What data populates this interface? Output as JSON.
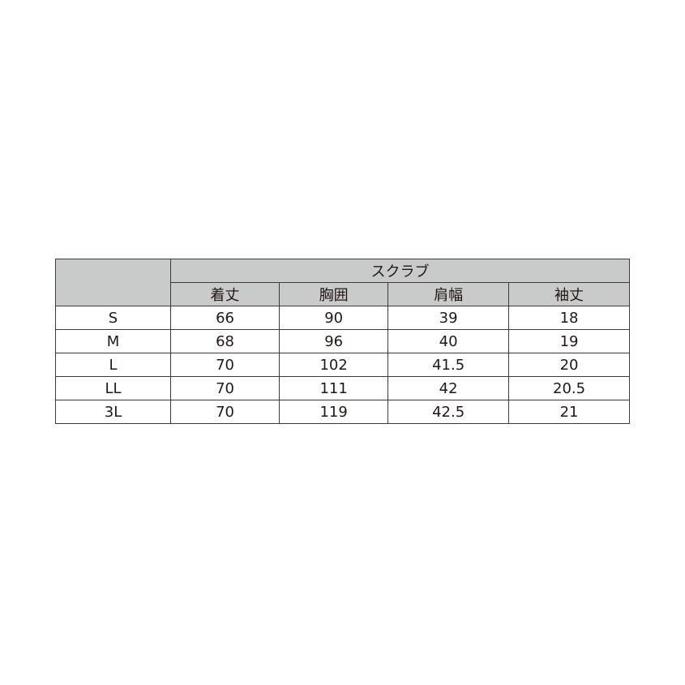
{
  "table": {
    "group_header": "スクラブ",
    "columns": [
      "着丈",
      "胸囲",
      "肩幅",
      "袖丈"
    ],
    "rows": [
      {
        "size": "S",
        "values": [
          "66",
          "90",
          "39",
          "18"
        ]
      },
      {
        "size": "M",
        "values": [
          "68",
          "96",
          "40",
          "19"
        ]
      },
      {
        "size": "L",
        "values": [
          "70",
          "102",
          "41.5",
          "20"
        ]
      },
      {
        "size": "LL",
        "values": [
          "70",
          "111",
          "42",
          "20.5"
        ]
      },
      {
        "size": "3L",
        "values": [
          "70",
          "119",
          "42.5",
          "21"
        ]
      }
    ],
    "header_color": "#c9caca",
    "border_color": "#3e3a39"
  }
}
